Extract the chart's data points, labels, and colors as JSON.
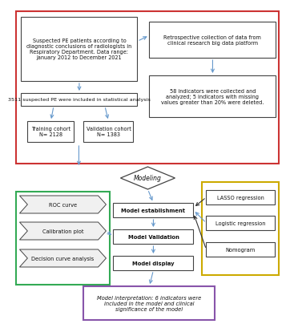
{
  "background_color": "#ffffff",
  "red_border_color": "#cc3333",
  "green_border_color": "#33aa55",
  "yellow_border_color": "#ccaa00",
  "purple_border_color": "#8855aa",
  "box_fill": "#ffffff",
  "box_border": "#444444",
  "arrow_color": "#6699cc",
  "arrow_color_dark": "#333333",
  "text_color": "#111111",
  "box1_text": "Suspected PE patients according to\ndiagnostic conclusions of radiologists in\nRespiratory Department. Data range:\nJanuary 2012 to December 2021",
  "box2_text": "Retrospective collection of data from\nclinical research big data platform",
  "box3_text": "3511 suspected PE were included in statistical analysis",
  "box4_text": "58 indicators were collected and\nanalyzed; 5 indicators with missing\nvalues greater than 20% were deleted.",
  "box5_text": "Training cohort\nN= 2128",
  "box6_text": "Validation cohort\nN= 1383",
  "diamond_text": "Modeling",
  "box_me_text": "Model establishment",
  "box_mv_text": "Model Validation",
  "box_md_text": "Model display",
  "box_lasso_text": "LASSO regression",
  "box_logistic_text": "Logistic regression",
  "box_nomogram_text": "Nomogram",
  "box_roc_text": "ROC curve",
  "box_calib_text": "Calibration plot",
  "box_dca_text": "Decision curve analysis",
  "box_final_text": "Model interpretation: 6 indicators were\nincluded in the model and clinical\nsignificance of the model"
}
